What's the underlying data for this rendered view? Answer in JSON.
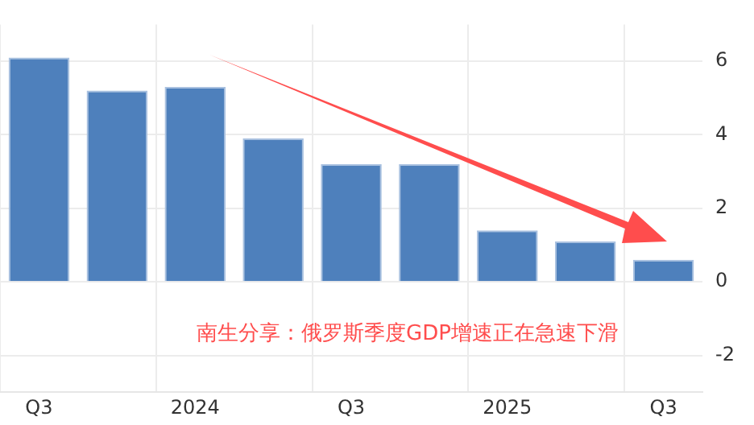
{
  "chart_data": {
    "type": "bar",
    "categories": [
      "Q3",
      null,
      "2024",
      null,
      "Q3",
      null,
      "2025",
      null,
      "Q3"
    ],
    "values": [
      6.1,
      5.2,
      5.3,
      3.9,
      3.2,
      3.2,
      1.4,
      1.1,
      0.6
    ],
    "color": "#4e80bc",
    "ylim": [
      -3,
      7
    ],
    "yticks": [
      -2,
      0,
      2,
      4,
      6
    ],
    "grid": true,
    "annotations": [
      "南生分享：俄罗斯季度GDP增速正在急速下滑"
    ]
  }
}
